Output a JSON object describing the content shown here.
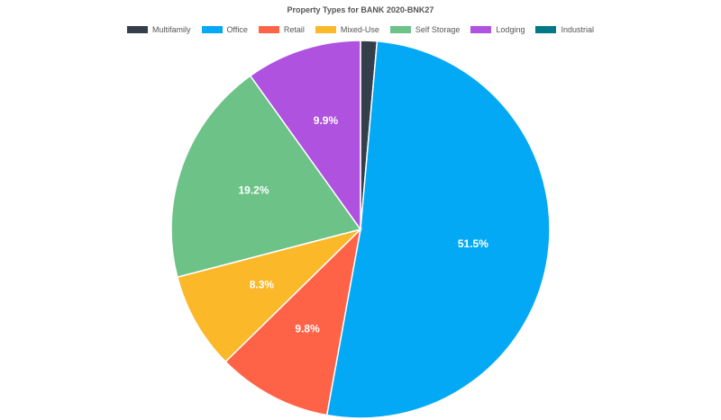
{
  "chart_data": {
    "type": "pie",
    "title": "Property Types for BANK 2020-BNK27",
    "legend_position": "top",
    "slices": [
      {
        "label": "Multifamily",
        "value": 1.4,
        "color": "#343f4b"
      },
      {
        "label": "Office",
        "value": 51.5,
        "color": "#03a9f4"
      },
      {
        "label": "Retail",
        "value": 9.8,
        "color": "#ff6347"
      },
      {
        "label": "Mixed-Use",
        "value": 8.3,
        "color": "#fbb829"
      },
      {
        "label": "Self Storage",
        "value": 19.2,
        "color": "#6cc287"
      },
      {
        "label": "Lodging",
        "value": 9.9,
        "color": "#ae52df"
      },
      {
        "label": "Industrial",
        "value": 0.0,
        "color": "#007888"
      }
    ],
    "data_labels": [
      "",
      "51.5%",
      "9.8%",
      "8.3%",
      "19.2%",
      "9.9%",
      ""
    ]
  }
}
